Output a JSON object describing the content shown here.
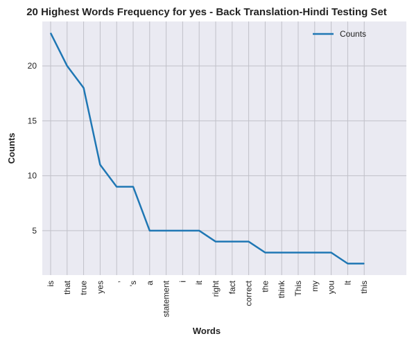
{
  "chart_data": {
    "type": "line",
    "title": "20 Highest Words Frequency for yes - Back Translation-Hindi Testing Set",
    "xlabel": "Words",
    "ylabel": "Counts",
    "categories": [
      "is",
      "that",
      "true",
      "yes",
      ",",
      "'s",
      "a",
      "statement",
      "i",
      "it",
      "right",
      "fact",
      "correct",
      "the",
      "think",
      "This",
      "my",
      "you",
      "It",
      "this"
    ],
    "series": [
      {
        "name": "Counts",
        "values": [
          23,
          20,
          18,
          11,
          9,
          9,
          5,
          5,
          5,
          5,
          4,
          4,
          4,
          3,
          3,
          3,
          3,
          3,
          2,
          2
        ]
      }
    ],
    "yticks": [
      5,
      10,
      15,
      20
    ],
    "ylim": [
      0.95,
      24.05
    ],
    "grid": true,
    "legend_position": "top-right",
    "colors": {
      "line": "#1f77b4",
      "plot_bg": "#eaeaf2",
      "grid": "#c0c0c8"
    }
  }
}
